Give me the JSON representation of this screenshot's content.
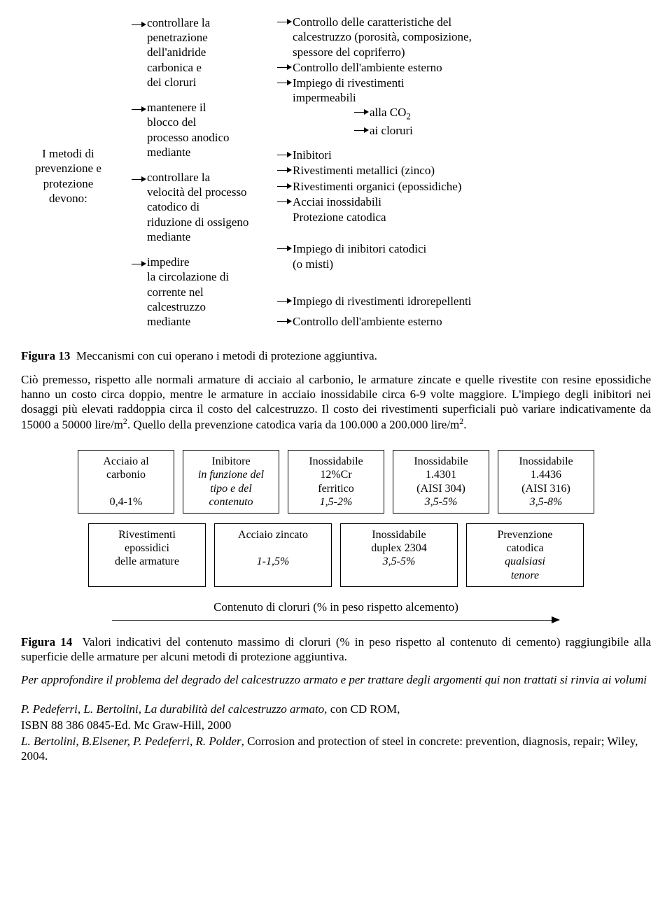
{
  "fig13": {
    "root": "I metodi di\nprevenzione e\nprotezione\ndevono:",
    "mid": [
      "controllare la\npenetrazione\ndell'anidride\ncarbonica e\ndei cloruri",
      "mantenere il\nblocco del\nprocesso anodico\nmediante",
      "controllare la\nvelocità del processo\ncatodico di\nriduzione di ossigeno\nmediante",
      "impedire\nla circolazione di\ncorrente nel\ncalcestruzzo\nmediante"
    ],
    "right1": [
      "Controllo delle caratteristiche del\ncalcestruzzo (porosità, composizione,\nspessore del copriferro)",
      "Controllo dell'ambiente esterno",
      "Impiego di rivestimenti\nimpermeabili"
    ],
    "right1_sub": [
      "alla CO",
      "ai cloruri"
    ],
    "right1_sub_sub": "2",
    "right2": [
      "Inibitori",
      "Rivestimenti metallici (zinco)",
      "Rivestimenti organici (epossidiche)",
      "Acciai inossidabili",
      "Protezione catodica"
    ],
    "right3": [
      "Impiego di inibitori catodici\n(o misti)"
    ],
    "right4": [
      "Impiego di rivestimenti idrorepellenti",
      "Controllo dell'ambiente esterno"
    ],
    "caption_label": "Figura 13",
    "caption_text": "Meccanismi con cui operano i metodi di protezione aggiuntiva."
  },
  "para1_a": "Ciò premesso, rispetto alle normali armature di acciaio al carbonio, le armature zincate e quelle rivestite con resine epossidiche hanno un costo circa doppio, mentre le armature in acciaio inossidabile circa 6-9 volte maggiore. L'impiego degli inibitori nei dosaggi più elevati raddoppia circa il costo del calcestruzzo. Il costo dei rivestimenti superficiali può variare indicativamente da 15000 a 50000 lire/m",
  "para1_b": ". Quello della prevenzione catodica varia da 100.000 a 200.000 lire/m",
  "para1_c": ".",
  "sup2": "2",
  "fig14": {
    "row1": [
      {
        "l1": "Acciaio al",
        "l2": "carbonio",
        "l3": "",
        "l4": "0,4-1%"
      },
      {
        "l1": "Inibitore",
        "l2_it": "in funzione del",
        "l3_it": "tipo e del",
        "l4_it": "contenuto"
      },
      {
        "l1": "Inossidabile",
        "l2": "12%Cr",
        "l3": "ferritico",
        "l4_it": "1,5-2%"
      },
      {
        "l1": "Inossidabile",
        "l2": "1.4301",
        "l3": "(AISI 304)",
        "l4_it": "3,5-5%"
      },
      {
        "l1": "Inossidabile",
        "l2": "1.4436",
        "l3": "(AISI 316)",
        "l4_it": "3,5-8%"
      }
    ],
    "row2": [
      {
        "l1": "Rivestimenti",
        "l2": "epossidici",
        "l3": "delle armature",
        "l4": ""
      },
      {
        "l1": "Acciaio zincato",
        "l2": "",
        "l3_it": "1-1,5%",
        "l4": ""
      },
      {
        "l1": "Inossidabile",
        "l2": "duplex 2304",
        "l3_it": "3,5-5%",
        "l4": ""
      },
      {
        "l1": "Prevenzione",
        "l2": "catodica",
        "l3_it": "qualsiasi",
        "l4_it": "tenore"
      }
    ],
    "axis_label": "Contenuto di cloruri (% in peso rispetto alcemento)",
    "caption_label": "Figura 14",
    "caption_text": "Valori indicativi del contenuto massimo di cloruri (% in peso rispetto al contenuto di cemento) raggiungibile alla superficie delle armature per alcuni metodi di protezione aggiuntiva."
  },
  "closing_it": "Per approfondire il problema del degrado del calcestruzzo armato e per trattare degli argomenti qui non trattati si rinvia ai volumi",
  "ref1_a_it": "P. Pedeferri, L. Bertolini, La durabilità del calcestruzzo armato,",
  "ref1_b": " con CD ROM,",
  "ref2": "ISBN 88 386 0845-Ed. Mc Graw-Hill, 2000",
  "ref3_a_it": "L. Bertolini, B.Elsener, P. Pedeferri, R. Polder",
  "ref3_b": ", Corrosion and protection of steel in concrete: prevention, diagnosis, repair; Wiley, 2004."
}
